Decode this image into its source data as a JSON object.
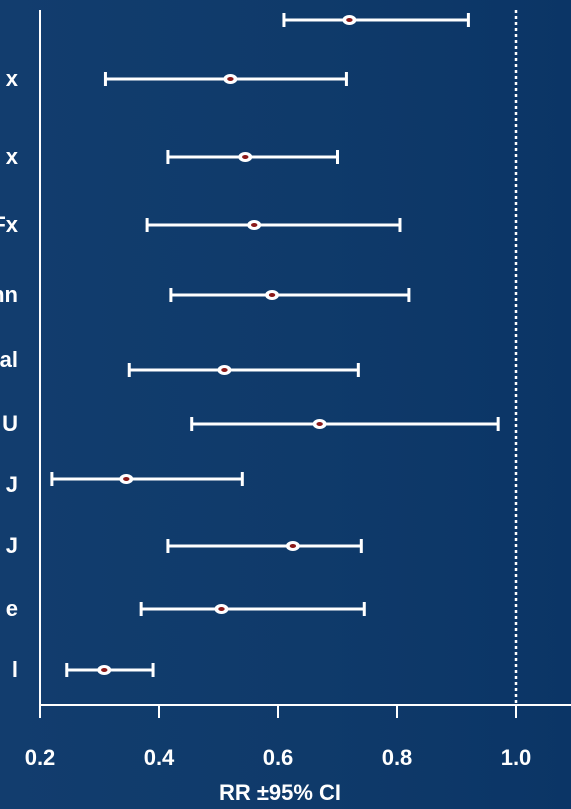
{
  "chart_data": {
    "type": "forest",
    "categories": [
      "",
      "x",
      "x",
      "Fx",
      "nn",
      "al",
      "U",
      "J",
      "J",
      "e",
      "l"
    ],
    "series": [
      {
        "point": [
          0.72,
          0.52,
          0.545,
          0.56,
          0.59,
          0.51,
          0.67,
          0.345,
          0.625,
          0.505,
          0.308
        ],
        "lower": [
          0.61,
          0.31,
          0.415,
          0.38,
          0.42,
          0.35,
          0.455,
          0.22,
          0.415,
          0.37,
          0.245
        ],
        "upper": [
          0.92,
          0.715,
          0.7,
          0.805,
          0.82,
          0.735,
          0.97,
          0.54,
          0.74,
          0.745,
          0.39
        ]
      }
    ],
    "xlim": [
      0.2,
      1.05
    ],
    "xticks": [
      0.2,
      0.4,
      0.6,
      0.8,
      1.0
    ],
    "xtick_labels": [
      "0.2",
      "0.4",
      "0.6",
      "0.8",
      "1.0"
    ],
    "xlabel": "RR ±95% CI",
    "reference_line": 1.0,
    "grid": false
  },
  "colors": {
    "background": "#0f3a6a",
    "line": "#ffffff",
    "marker_fill": "#ffffff",
    "marker_center": "#8b1a1a"
  }
}
